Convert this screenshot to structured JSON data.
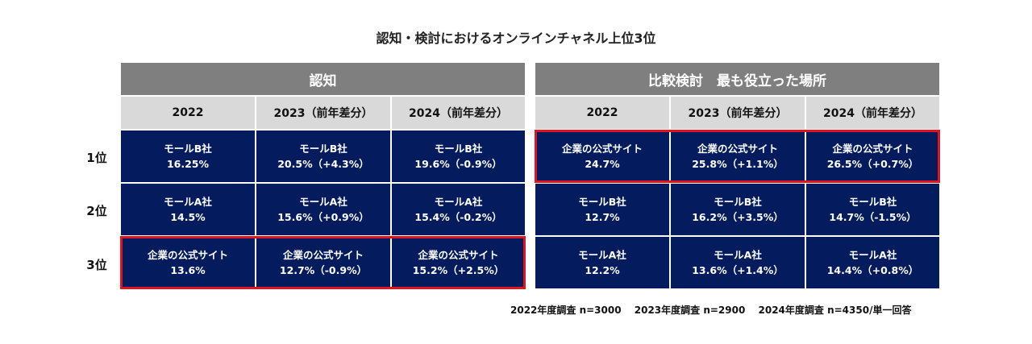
{
  "title": "認知・検討におけるオンラインチャネル上位3位",
  "ranks": [
    "1位",
    "2位",
    "3位"
  ],
  "tables": [
    {
      "header": "認知",
      "years": [
        "2022",
        "2023（前年差分）",
        "2024（前年差分）"
      ],
      "highlight_row": 2,
      "rows": [
        [
          {
            "name": "モールB社",
            "value": "16.25%"
          },
          {
            "name": "モールB社",
            "value": "20.5%（+4.3%）"
          },
          {
            "name": "モールB社",
            "value": "19.6%（-0.9%）"
          }
        ],
        [
          {
            "name": "モールA社",
            "value": "14.5%"
          },
          {
            "name": "モールA社",
            "value": "15.6%（+0.9%）"
          },
          {
            "name": "モールA社",
            "value": "15.4%（-0.2%）"
          }
        ],
        [
          {
            "name": "企業の公式サイト",
            "value": "13.6%"
          },
          {
            "name": "企業の公式サイト",
            "value": "12.7%（-0.9%）"
          },
          {
            "name": "企業の公式サイト",
            "value": "15.2%（+2.5%）"
          }
        ]
      ]
    },
    {
      "header": "比較検討　最も役立った場所",
      "years": [
        "2022",
        "2023（前年差分）",
        "2024（前年差分）"
      ],
      "highlight_row": 0,
      "rows": [
        [
          {
            "name": "企業の公式サイト",
            "value": "24.7%"
          },
          {
            "name": "企業の公式サイト",
            "value": "25.8%（+1.1%）"
          },
          {
            "name": "企業の公式サイト",
            "value": "26.5%（+0.7%）"
          }
        ],
        [
          {
            "name": "モールB社",
            "value": "12.7%"
          },
          {
            "name": "モールB社",
            "value": "16.2%（+3.5%）"
          },
          {
            "name": "モールB社",
            "value": "14.7%（-1.5%）"
          }
        ],
        [
          {
            "name": "モールA社",
            "value": "12.2%"
          },
          {
            "name": "モールA社",
            "value": "13.6%（+1.4%）"
          },
          {
            "name": "モールA社",
            "value": "14.4%（+0.8%）"
          }
        ]
      ]
    }
  ],
  "note": "2022年度調査 n=3000　 2023年度調査 n=2900　 2024年度調査 n=4350/単一回答",
  "colors": {
    "header": "#7f7f7f",
    "year": "#d9d9d9",
    "cell": "#041c5e",
    "highlight": "#e0141e"
  }
}
